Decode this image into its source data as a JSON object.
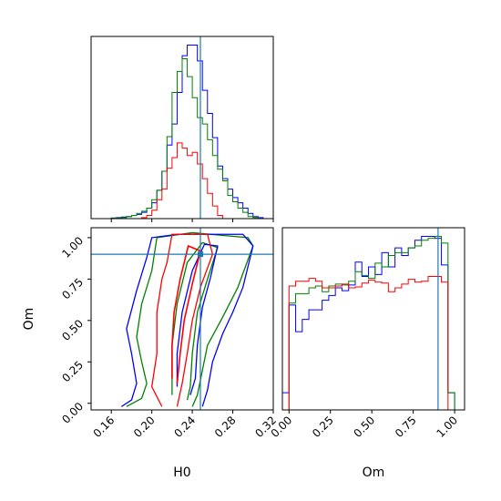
{
  "chart_data": {
    "type": "corner",
    "parameters": [
      "H0",
      "Om"
    ],
    "truths": {
      "H0": 0.248,
      "Om": 0.9
    },
    "colors": {
      "blue": "#0000ff",
      "green": "#008000",
      "red": "#ff0000",
      "truth": "#1f77b4"
    },
    "axes": {
      "H0": {
        "range": [
          0.14,
          0.32
        ],
        "ticks": [
          0.16,
          0.2,
          0.24,
          0.28,
          0.32
        ],
        "tick_labels": [
          "0.16",
          "0.20",
          "0.24",
          "0.28",
          "0.32"
        ],
        "xlabel": "H0"
      },
      "Om": {
        "range": [
          -0.04,
          1.06
        ],
        "ticks": [
          0.0,
          0.25,
          0.5,
          0.75,
          1.0
        ],
        "tick_labels": [
          "0.00",
          "0.25",
          "0.50",
          "0.75",
          "1.00"
        ],
        "xlabel": "Om",
        "ylabel": "Om"
      }
    },
    "hist_H0": {
      "bins": [
        0.14,
        0.145,
        0.15,
        0.155,
        0.16,
        0.165,
        0.17,
        0.175,
        0.18,
        0.185,
        0.19,
        0.195,
        0.2,
        0.205,
        0.21,
        0.215,
        0.22,
        0.225,
        0.23,
        0.235,
        0.24,
        0.245,
        0.25,
        0.255,
        0.26,
        0.265,
        0.27,
        0.275,
        0.28,
        0.285,
        0.29,
        0.295,
        0.3,
        0.305,
        0.31,
        0.315,
        0.32
      ],
      "series": [
        {
          "color": "blue",
          "values": [
            0,
            0,
            0,
            0,
            0.5,
            1,
            1.5,
            2,
            3,
            4,
            6,
            10,
            15,
            27,
            45,
            70,
            90,
            120,
            155,
            165,
            165,
            150,
            122,
            100,
            77,
            50,
            38,
            28,
            20,
            15,
            10,
            5,
            2,
            1,
            0,
            0
          ]
        },
        {
          "color": "green",
          "values": [
            0,
            0,
            0,
            0,
            0.5,
            0.5,
            1,
            2,
            3,
            5,
            7,
            10,
            18,
            27,
            45,
            78,
            120,
            140,
            152,
            135,
            115,
            96,
            90,
            75,
            60,
            47,
            36,
            22,
            16,
            10,
            6,
            2,
            1,
            0,
            0,
            0
          ]
        },
        {
          "color": "red",
          "values": [
            0,
            0,
            0,
            0,
            0,
            0,
            0,
            0,
            0,
            0,
            1,
            3,
            8,
            18,
            28,
            48,
            58,
            72,
            67,
            60,
            63,
            52,
            38,
            24,
            12,
            3,
            0,
            0,
            0,
            0,
            0,
            0,
            0,
            0,
            0,
            0
          ]
        }
      ]
    },
    "hist_Om": {
      "bins": [
        -0.04,
        0.0,
        0.04,
        0.08,
        0.12,
        0.16,
        0.2,
        0.24,
        0.28,
        0.32,
        0.36,
        0.4,
        0.44,
        0.48,
        0.52,
        0.56,
        0.6,
        0.64,
        0.68,
        0.72,
        0.76,
        0.8,
        0.84,
        0.88,
        0.92,
        0.96,
        1.0,
        1.04
      ],
      "series": [
        {
          "color": "blue",
          "values": [
            18,
            110,
            82,
            95,
            105,
            105,
            115,
            120,
            128,
            125,
            131,
            155,
            140,
            150,
            142,
            165,
            150,
            170,
            162,
            170,
            178,
            182,
            182,
            180,
            152,
            18,
            0
          ]
        },
        {
          "color": "green",
          "values": [
            0,
            112,
            122,
            122,
            128,
            130,
            124,
            130,
            132,
            131,
            135,
            145,
            141,
            138,
            154,
            150,
            162,
            165,
            165,
            170,
            172,
            178,
            180,
            182,
            175,
            18,
            0
          ]
        },
        {
          "color": "red",
          "values": [
            0,
            130,
            135,
            135,
            138,
            135,
            128,
            128,
            130,
            132,
            128,
            129,
            133,
            136,
            134,
            133,
            124,
            128,
            132,
            137,
            134,
            135,
            140,
            140,
            134,
            0,
            0
          ]
        }
      ]
    },
    "contours": [
      {
        "color": "green",
        "level": "outer",
        "points": [
          [
            0.175,
            -0.02
          ],
          [
            0.19,
            0.03
          ],
          [
            0.195,
            0.12
          ],
          [
            0.19,
            0.25
          ],
          [
            0.185,
            0.4
          ],
          [
            0.19,
            0.6
          ],
          [
            0.2,
            0.8
          ],
          [
            0.205,
            1.0
          ],
          [
            0.24,
            1.03
          ],
          [
            0.295,
            1.0
          ],
          [
            0.3,
            0.95
          ],
          [
            0.285,
            0.7
          ],
          [
            0.27,
            0.52
          ],
          [
            0.255,
            0.35
          ],
          [
            0.25,
            0.2
          ],
          [
            0.245,
            0.05
          ],
          [
            0.24,
            -0.02
          ]
        ]
      },
      {
        "color": "blue",
        "level": "outer",
        "points": [
          [
            0.17,
            -0.02
          ],
          [
            0.18,
            0.02
          ],
          [
            0.185,
            0.12
          ],
          [
            0.18,
            0.3
          ],
          [
            0.175,
            0.45
          ],
          [
            0.185,
            0.68
          ],
          [
            0.195,
            0.88
          ],
          [
            0.2,
            1.0
          ],
          [
            0.225,
            1.02
          ],
          [
            0.29,
            1.02
          ],
          [
            0.3,
            0.95
          ],
          [
            0.29,
            0.7
          ],
          [
            0.28,
            0.55
          ],
          [
            0.27,
            0.42
          ],
          [
            0.26,
            0.25
          ],
          [
            0.255,
            0.08
          ],
          [
            0.25,
            -0.02
          ]
        ]
      },
      {
        "color": "green",
        "level": "inner",
        "points": [
          [
            0.22,
            0.05
          ],
          [
            0.22,
            0.2
          ],
          [
            0.22,
            0.35
          ],
          [
            0.225,
            0.6
          ],
          [
            0.235,
            0.85
          ],
          [
            0.25,
            0.97
          ],
          [
            0.265,
            0.94
          ],
          [
            0.255,
            0.75
          ],
          [
            0.245,
            0.55
          ],
          [
            0.24,
            0.3
          ],
          [
            0.238,
            0.1
          ],
          [
            0.235,
            0.02
          ]
        ]
      },
      {
        "color": "blue",
        "level": "inner",
        "points": [
          [
            0.225,
            0.1
          ],
          [
            0.225,
            0.3
          ],
          [
            0.23,
            0.55
          ],
          [
            0.24,
            0.8
          ],
          [
            0.252,
            0.96
          ],
          [
            0.265,
            0.95
          ],
          [
            0.258,
            0.76
          ],
          [
            0.25,
            0.58
          ],
          [
            0.245,
            0.35
          ],
          [
            0.243,
            0.15
          ],
          [
            0.238,
            0.05
          ]
        ]
      },
      {
        "color": "red",
        "level": "outer",
        "points": [
          [
            0.21,
            -0.02
          ],
          [
            0.2,
            0.1
          ],
          [
            0.205,
            0.3
          ],
          [
            0.205,
            0.55
          ],
          [
            0.21,
            0.75
          ],
          [
            0.215,
            0.85
          ],
          [
            0.22,
            1.02
          ],
          [
            0.255,
            1.02
          ],
          [
            0.26,
            0.9
          ],
          [
            0.248,
            0.7
          ],
          [
            0.24,
            0.5
          ],
          [
            0.235,
            0.3
          ],
          [
            0.23,
            0.12
          ],
          [
            0.225,
            -0.02
          ]
        ]
      },
      {
        "color": "red",
        "level": "inner",
        "points": [
          [
            0.22,
            0.15
          ],
          [
            0.22,
            0.35
          ],
          [
            0.222,
            0.55
          ],
          [
            0.228,
            0.75
          ],
          [
            0.236,
            0.95
          ],
          [
            0.248,
            0.92
          ],
          [
            0.24,
            0.72
          ],
          [
            0.232,
            0.5
          ],
          [
            0.228,
            0.3
          ],
          [
            0.225,
            0.12
          ]
        ]
      }
    ]
  }
}
